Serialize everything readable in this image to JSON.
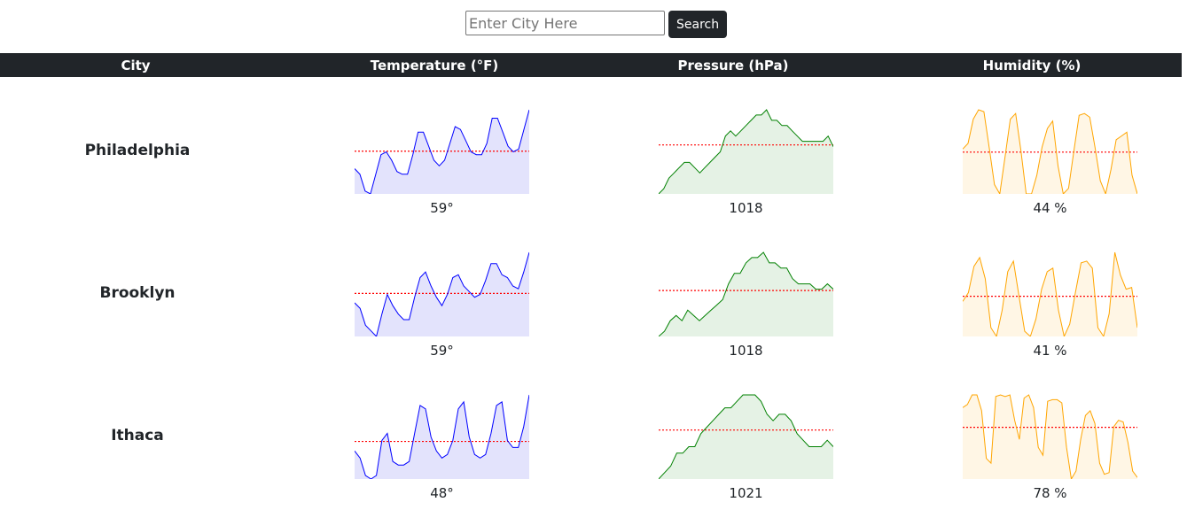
{
  "search": {
    "placeholder": "Enter City Here",
    "value": "",
    "button_label": "Search"
  },
  "table": {
    "headers": {
      "city": "City",
      "temperature": "Temperature (°F)",
      "pressure": "Pressure (hPa)",
      "humidity": "Humidity (%)"
    },
    "rows": [
      {
        "city": "Philadelphia",
        "temperature_value": "59°",
        "pressure_value": "1018",
        "humidity_value": "44 %",
        "temperature_series": [
          52,
          50,
          44,
          43,
          50,
          57,
          58,
          55,
          51,
          50,
          50,
          57,
          65,
          65,
          60,
          55,
          53,
          55,
          61,
          67,
          66,
          62,
          58,
          57,
          57,
          61,
          70,
          70,
          65,
          60,
          58,
          59,
          66,
          73
        ],
        "pressure_series": [
          1011,
          1012,
          1014,
          1015,
          1016,
          1017,
          1017,
          1016,
          1015,
          1016,
          1017,
          1018,
          1019,
          1022,
          1023,
          1022,
          1023,
          1024,
          1025,
          1026,
          1026,
          1027,
          1025,
          1025,
          1024,
          1024,
          1023,
          1022,
          1021,
          1021,
          1021,
          1021,
          1021,
          1022,
          1020
        ],
        "humidity_series": [
          59,
          62,
          75,
          80,
          79,
          60,
          40,
          35,
          55,
          75,
          78,
          58,
          35,
          35,
          45,
          60,
          70,
          74,
          50,
          35,
          38,
          58,
          77,
          78,
          76,
          60,
          42,
          35,
          48,
          64,
          66,
          68,
          45,
          35
        ]
      },
      {
        "city": "Brooklyn",
        "temperature_value": "59°",
        "pressure_value": "1018",
        "humidity_value": "41 %",
        "temperature_series": [
          54,
          52,
          46,
          44,
          42,
          50,
          57,
          53,
          50,
          48,
          48,
          56,
          63,
          65,
          60,
          56,
          53,
          57,
          63,
          64,
          60,
          58,
          56,
          57,
          62,
          68,
          68,
          64,
          63,
          60,
          59,
          65,
          72
        ],
        "pressure_series": [
          1011,
          1012,
          1014,
          1015,
          1014,
          1016,
          1015,
          1014,
          1015,
          1016,
          1017,
          1018,
          1021,
          1023,
          1023,
          1025,
          1026,
          1026,
          1027,
          1025,
          1025,
          1024,
          1024,
          1022,
          1021,
          1021,
          1021,
          1020,
          1020,
          1021,
          1020
        ],
        "humidity_series": [
          55,
          60,
          75,
          80,
          68,
          40,
          35,
          50,
          72,
          78,
          58,
          38,
          35,
          45,
          62,
          72,
          74,
          50,
          35,
          42,
          60,
          77,
          78,
          74,
          40,
          35,
          48,
          83,
          70,
          62,
          63,
          40
        ],
        "highlight": null
      },
      {
        "city": "Ithaca",
        "temperature_value": "48°",
        "pressure_value": "1021",
        "humidity_value": "78 %",
        "temperature_series": [
          41,
          39,
          34,
          33,
          34,
          44,
          46,
          38,
          37,
          37,
          38,
          46,
          54,
          53,
          45,
          41,
          39,
          40,
          44,
          53,
          55,
          45,
          40,
          39,
          40,
          46,
          54,
          55,
          44,
          42,
          42,
          48,
          57
        ],
        "pressure_series": [
          1014,
          1015,
          1016,
          1018,
          1018,
          1019,
          1019,
          1021,
          1022,
          1023,
          1024,
          1025,
          1025,
          1026,
          1027,
          1027,
          1027,
          1026,
          1024,
          1023,
          1024,
          1024,
          1023,
          1021,
          1020,
          1019,
          1019,
          1019,
          1020,
          1019
        ],
        "humidity_series": [
          80,
          82,
          88,
          88,
          78,
          48,
          45,
          87,
          88,
          87,
          88,
          72,
          60,
          86,
          88,
          80,
          55,
          50,
          84,
          85,
          85,
          83,
          55,
          35,
          40,
          60,
          75,
          78,
          70,
          45,
          38,
          39,
          68,
          72,
          71,
          58,
          40,
          36
        ]
      }
    ]
  },
  "colors": {
    "temperature_line": "#0000ff",
    "temperature_fill": "#e3e3fc",
    "pressure_line": "#008000",
    "pressure_fill": "#e5f2e5",
    "humidity_line": "#ffa500",
    "humidity_fill": "#fff6e5",
    "average_line": "#ff0000",
    "header_bg": "#212529"
  }
}
